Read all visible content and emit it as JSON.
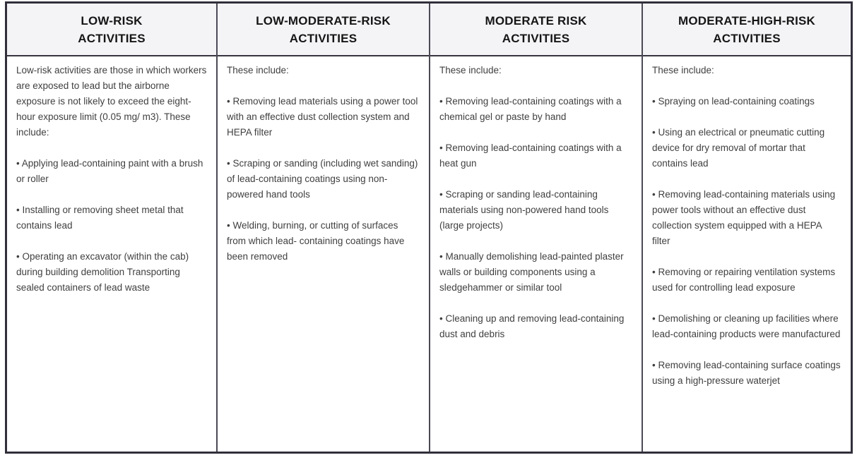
{
  "page": {
    "title": "Lead exposure risk activities comparison table",
    "bullet_char": "•",
    "colors": {
      "outer_border": "#322f3b",
      "column_divider": "#4b4954",
      "header_separator": "#37343f",
      "header_bg": "#f4f4f7",
      "header_text": "#161616",
      "body_text": "#3f3f3f",
      "body_bg": "#ffffff"
    }
  },
  "table": {
    "columns": [
      {
        "header_line1": "LOW-RISK",
        "header_line2": "ACTIVITIES",
        "intro": "Low-risk activities are those in which workers are exposed to lead but the airborne exposure is not likely to exceed the eight-hour exposure limit (0.05 mg/ m3). These include:",
        "bullets": [
          "Applying lead-containing paint with a brush or roller",
          "Installing or removing sheet metal that contains lead",
          "Operating an excavator (within the cab) during building demolition Transporting sealed containers of lead waste"
        ]
      },
      {
        "header_line1": "LOW-MODERATE-RISK",
        "header_line2": "ACTIVITIES",
        "intro": "These include:",
        "bullets": [
          "Removing lead materials using a power tool with an effective dust collection system and HEPA filter",
          "Scraping or sanding (including wet sanding) of lead-containing coatings using non-powered hand tools",
          "Welding, burning, or cutting of surfaces from which lead- containing coatings have been removed"
        ]
      },
      {
        "header_line1": "MODERATE RISK",
        "header_line2": "ACTIVITIES",
        "intro": "These include:",
        "bullets": [
          "Removing lead-containing coatings with a chemical gel or paste by hand",
          "Removing lead-containing coatings with a heat gun",
          "Scraping or sanding lead-containing materials using non-powered hand tools (large projects)",
          "Manually demolishing lead-painted plaster walls or building components using a sledgehammer or similar tool",
          "Cleaning up and removing lead-containing dust and debris"
        ]
      },
      {
        "header_line1": "MODERATE-HIGH-RISK",
        "header_line2": "ACTIVITIES",
        "intro": "These include:",
        "bullets": [
          "Spraying on lead-containing coatings",
          "Using an electrical or pneumatic cutting device for dry removal of mortar that contains lead",
          "Removing lead-containing materials using power tools without an effective dust collection system equipped with a HEPA filter",
          "Removing or repairing ventilation systems used for controlling lead exposure",
          "Demolishing or cleaning up facilities where lead-containing products were manufactured",
          "Removing lead-containing surface coatings using a high-pressure waterjet"
        ]
      }
    ]
  }
}
